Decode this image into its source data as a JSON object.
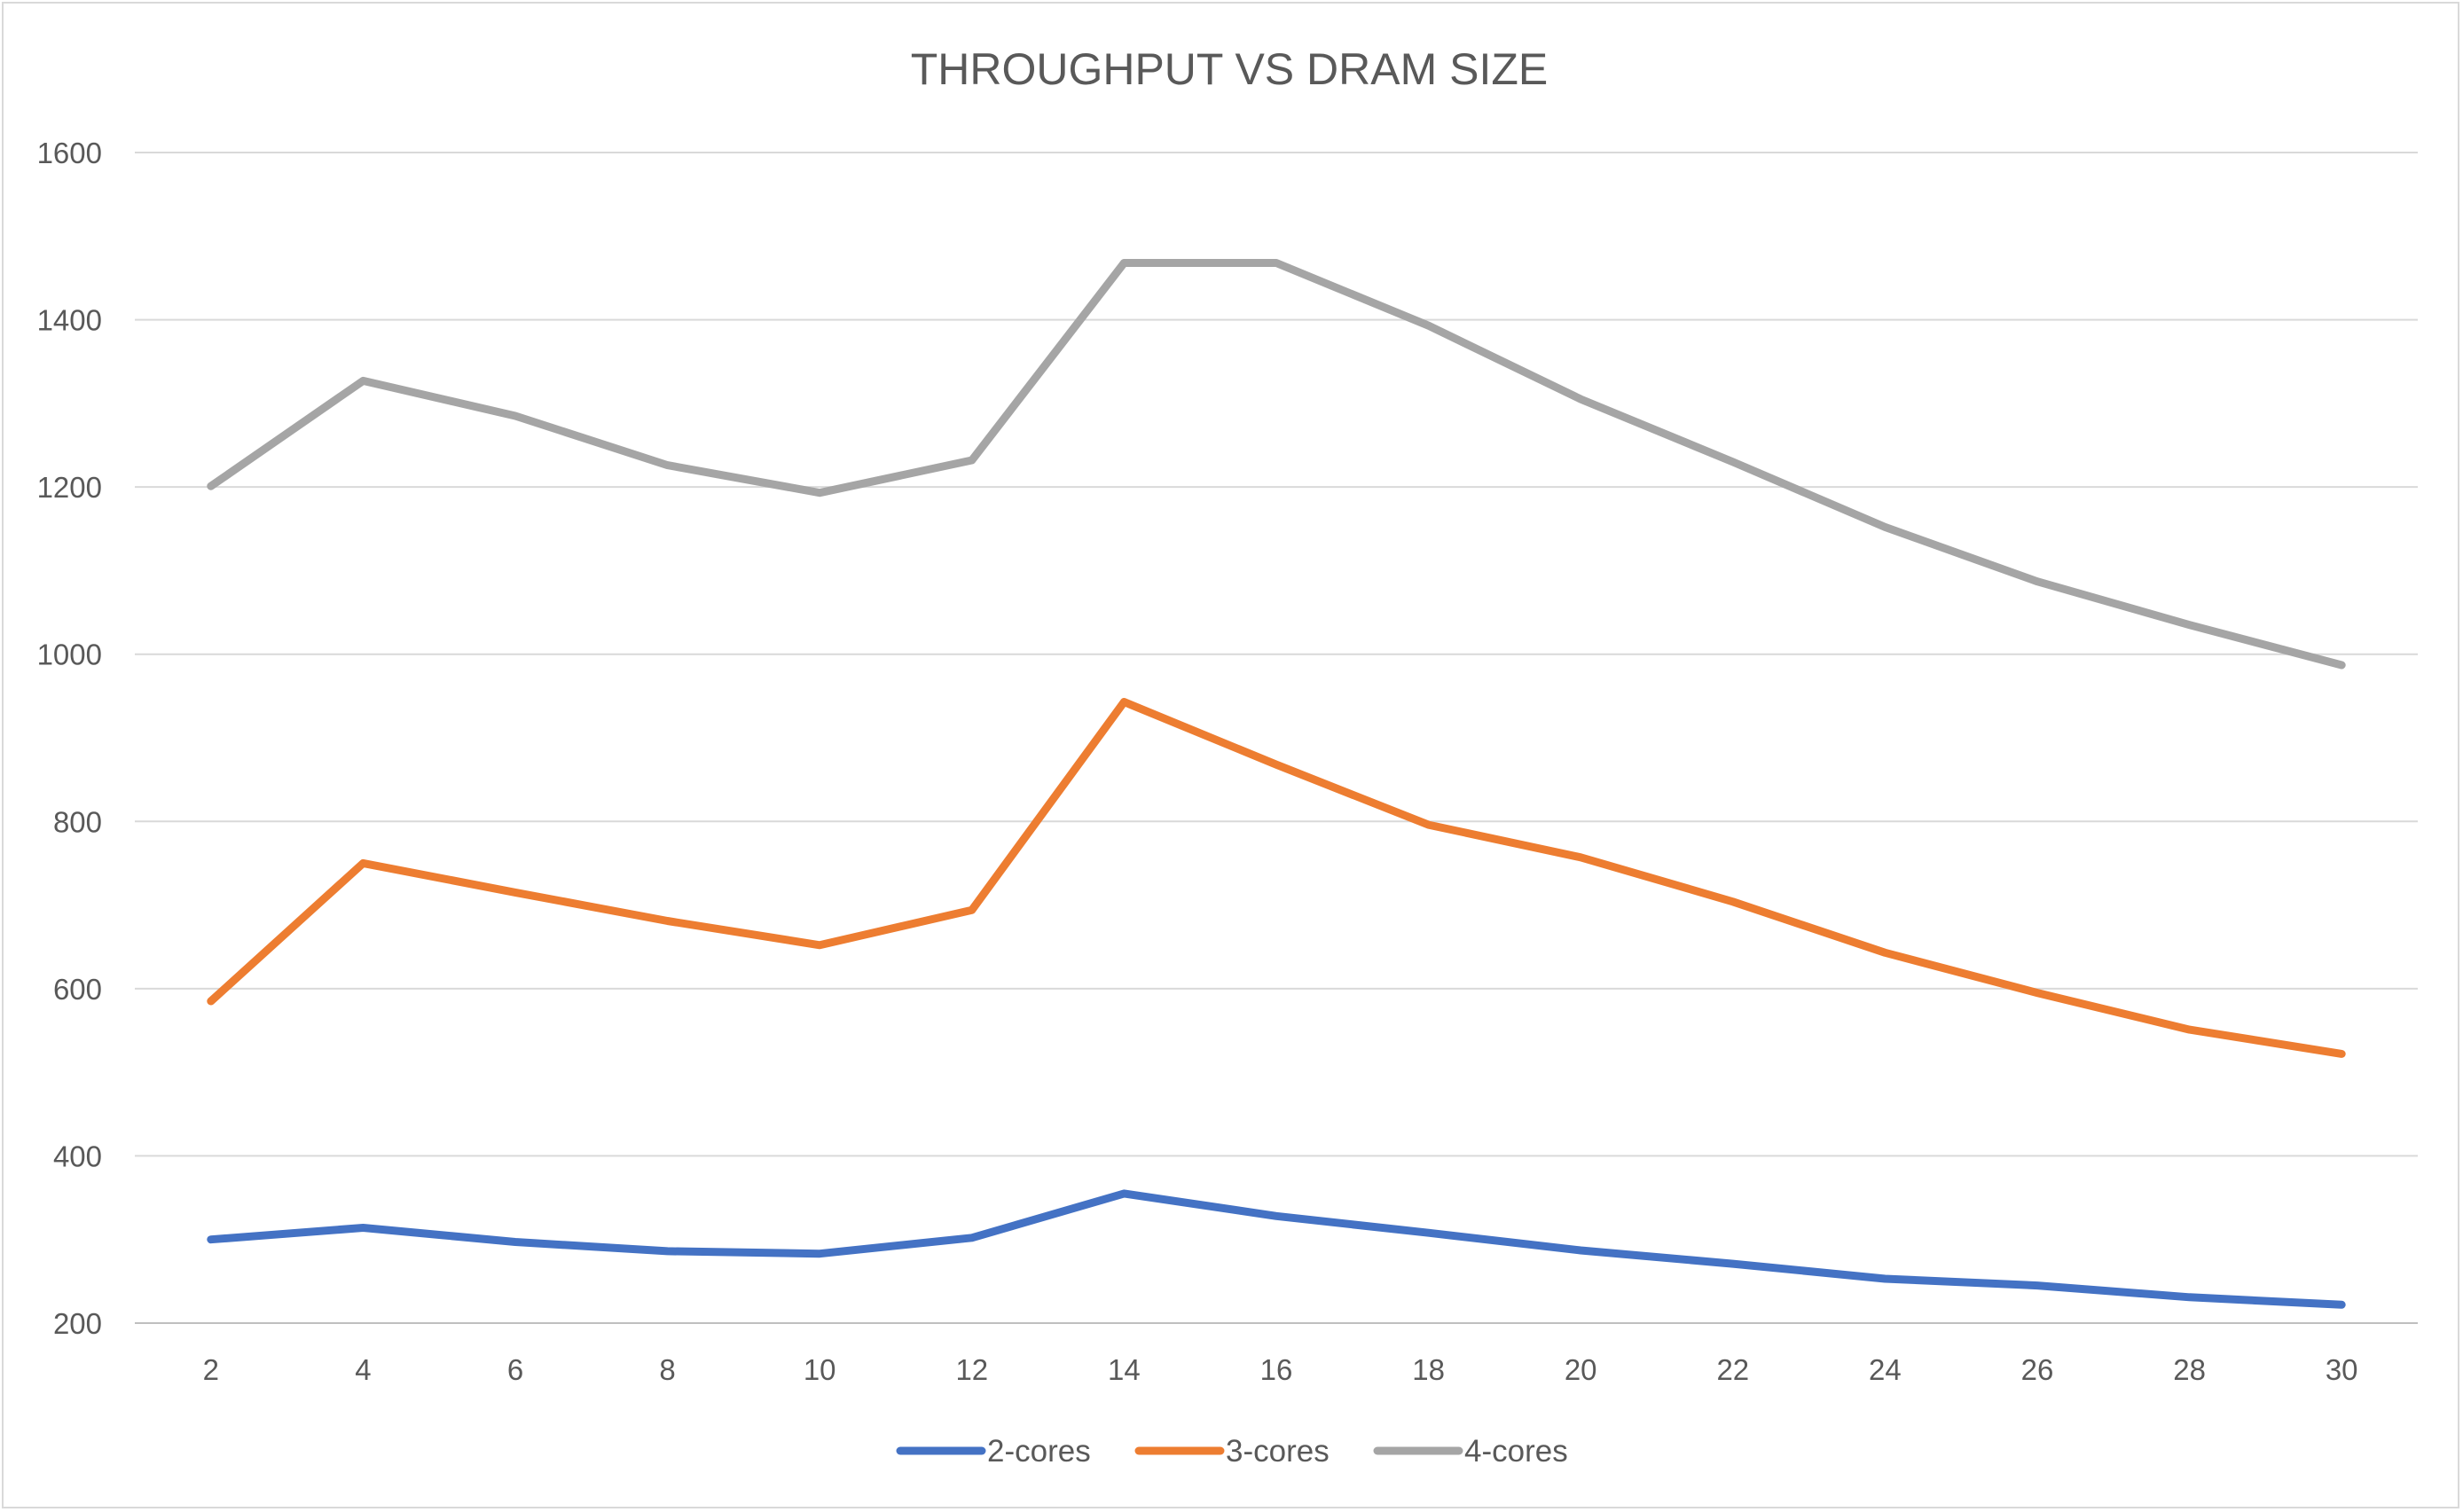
{
  "chart_data": {
    "type": "line",
    "title": "THROUGHPUT VS DRAM SIZE",
    "xlabel": "",
    "ylabel": "",
    "categories": [
      "2",
      "4",
      "6",
      "8",
      "10",
      "12",
      "14",
      "16",
      "18",
      "20",
      "22",
      "24",
      "26",
      "28",
      "30"
    ],
    "ylim": [
      200,
      1600
    ],
    "yticks": [
      "200",
      "400",
      "600",
      "800",
      "1000",
      "1200",
      "1400",
      "1600"
    ],
    "grid": true,
    "legend_position": "bottom",
    "series": [
      {
        "name": "2-cores",
        "color": "#4472C4",
        "values": [
          300,
          314,
          297,
          286,
          283,
          302,
          355,
          328,
          308,
          287,
          271,
          253,
          245,
          231,
          222
        ]
      },
      {
        "name": "3-cores",
        "color": "#ED7D31",
        "values": [
          585,
          750,
          715,
          681,
          652,
          694,
          943,
          868,
          796,
          757,
          704,
          643,
          595,
          551,
          522
        ]
      },
      {
        "name": "4-cores",
        "color": "#A5A5A5",
        "values": [
          1201,
          1327,
          1285,
          1226,
          1193,
          1232,
          1468,
          1468,
          1393,
          1305,
          1230,
          1152,
          1087,
          1035,
          987
        ]
      }
    ]
  }
}
